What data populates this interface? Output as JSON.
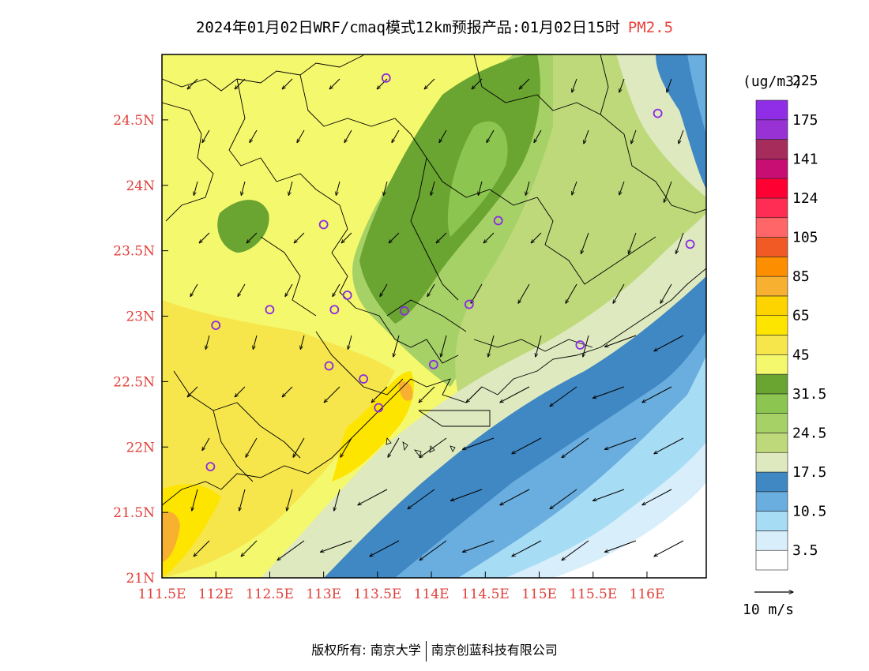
{
  "title": {
    "main": "2024年01月02日WRF/cmaq模式12km预报产品:01月02日15时",
    "pollutant": "PM2.5"
  },
  "map": {
    "lon_ticks": [
      "111.5E",
      "112E",
      "112.5E",
      "113E",
      "113.5E",
      "114E",
      "114.5E",
      "115E",
      "115.5E",
      "116E"
    ],
    "lat_ticks": [
      "21N",
      "21.5N",
      "22N",
      "22.5N",
      "23N",
      "23.5N",
      "24N",
      "24.5N"
    ],
    "extent": {
      "lon_min": 111.5,
      "lon_max": 116.55,
      "lat_min": 21,
      "lat_max": 25.0
    },
    "stations": [
      {
        "lon": 113.58,
        "lat": 24.82
      },
      {
        "lon": 116.1,
        "lat": 24.55
      },
      {
        "lon": 113.0,
        "lat": 23.7
      },
      {
        "lon": 114.62,
        "lat": 23.73
      },
      {
        "lon": 116.4,
        "lat": 23.55
      },
      {
        "lon": 112.5,
        "lat": 23.05
      },
      {
        "lon": 113.1,
        "lat": 23.05
      },
      {
        "lon": 113.22,
        "lat": 23.16
      },
      {
        "lon": 113.75,
        "lat": 23.04
      },
      {
        "lon": 114.35,
        "lat": 23.09
      },
      {
        "lon": 112.0,
        "lat": 22.93
      },
      {
        "lon": 113.05,
        "lat": 22.62
      },
      {
        "lon": 113.37,
        "lat": 22.52
      },
      {
        "lon": 114.02,
        "lat": 22.63
      },
      {
        "lon": 115.38,
        "lat": 22.78
      },
      {
        "lon": 113.51,
        "lat": 22.3
      },
      {
        "lon": 111.95,
        "lat": 21.85
      }
    ]
  },
  "legend": {
    "unit": "(ug/m3)",
    "colors": [
      "#ffffff",
      "#d8eefa",
      "#a7dcf5",
      "#6aaedf",
      "#3f88c3",
      "#dfe9bf",
      "#bed97a",
      "#a6d167",
      "#8cc54f",
      "#6aa431",
      "#f4f86c",
      "#f6e64c",
      "#fee500",
      "#fdd400",
      "#f8b030",
      "#fd8e00",
      "#f15a25",
      "#ff6668",
      "#ff2d54",
      "#ff0033",
      "#c80e73",
      "#a52c5b",
      "#9832d5",
      "#8f2ee6"
    ],
    "labels": [
      "3.5",
      "10.5",
      "17.5",
      "24.5",
      "31.5",
      "45",
      "65",
      "85",
      "105",
      "124",
      "141",
      "175",
      "225"
    ],
    "wind_ref": "10 m/s"
  },
  "copyright": {
    "prefix": "版权所有:",
    "org1": "南京大学",
    "org2": "南京创蓝科技有限公司"
  }
}
